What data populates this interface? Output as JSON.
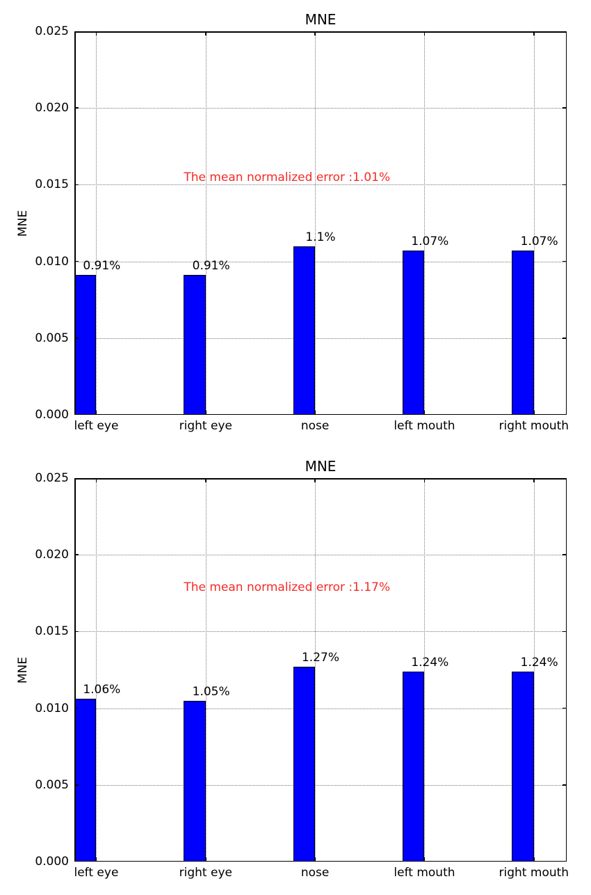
{
  "figure": {
    "background": "#ffffff"
  },
  "chart_data": [
    {
      "type": "bar",
      "title": "MNE",
      "ylabel": "MNE",
      "xlabel": "",
      "categories": [
        "left eye",
        "right eye",
        "nose",
        "left mouth",
        "right mouth"
      ],
      "values": [
        0.0091,
        0.0091,
        0.011,
        0.0107,
        0.0107
      ],
      "bar_labels": [
        "0.91%",
        "0.91%",
        "1.1%",
        "1.07%",
        "1.07%"
      ],
      "annotation": {
        "text": "The mean normalized error :1.01%",
        "x": 1.0,
        "y": 0.01515,
        "color": "#f42a25"
      },
      "ylim": [
        0,
        0.025
      ],
      "ytick_values": [
        0,
        0.005,
        0.01,
        0.015,
        0.02,
        0.025
      ],
      "ytick_labels": [
        "0.000",
        "0.005",
        "0.010",
        "0.015",
        "0.020",
        "0.025"
      ],
      "grid": true,
      "legend": null,
      "bar_color": "#0000ff",
      "bar_edge_color": "#000000"
    },
    {
      "type": "bar",
      "title": "MNE",
      "ylabel": "MNE",
      "xlabel": "",
      "categories": [
        "left eye",
        "right eye",
        "nose",
        "left mouth",
        "right mouth"
      ],
      "values": [
        0.0106,
        0.0105,
        0.0127,
        0.0124,
        0.0124
      ],
      "bar_labels": [
        "1.06%",
        "1.05%",
        "1.27%",
        "1.24%",
        "1.24%"
      ],
      "annotation": {
        "text": "The mean normalized error :1.17%",
        "x": 1.0,
        "y": 0.01755,
        "color": "#f42a25"
      },
      "ylim": [
        0,
        0.025
      ],
      "ytick_values": [
        0,
        0.005,
        0.01,
        0.015,
        0.02,
        0.025
      ],
      "ytick_labels": [
        "0.000",
        "0.005",
        "0.010",
        "0.015",
        "0.020",
        "0.025"
      ],
      "grid": true,
      "legend": null,
      "bar_color": "#0000ff",
      "bar_edge_color": "#000000"
    }
  ]
}
